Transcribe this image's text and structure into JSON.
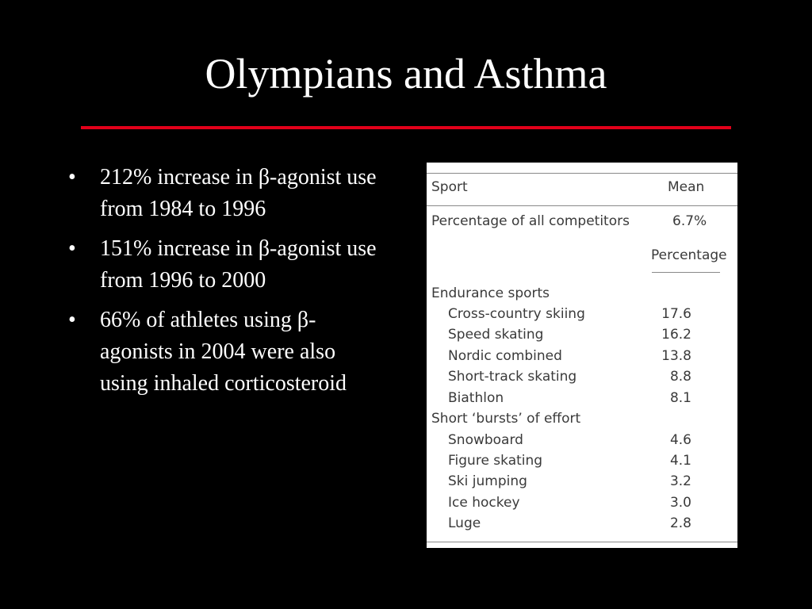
{
  "slide": {
    "title": "Olympians and Asthma",
    "accent_color": "#e2001a",
    "bullets": [
      "212% increase in β-agonist use from 1984 to 1996",
      "151% increase in β-agonist use from 1996 to 2000",
      "66% of athletes using β-agonists in 2004 were also using inhaled corticosteroid"
    ],
    "bullet_marker": "•"
  },
  "table": {
    "header": {
      "sport": "Sport",
      "mean": "Mean"
    },
    "all_competitors": {
      "label": "Percentage of all competitors",
      "value": "6.7%"
    },
    "subheader": "Percentage",
    "groups": [
      {
        "name": "Endurance sports",
        "rows": [
          {
            "sport": "Cross-country skiing",
            "value": "17.6"
          },
          {
            "sport": "Speed skating",
            "value": "16.2"
          },
          {
            "sport": "Nordic combined",
            "value": "13.8"
          },
          {
            "sport": "Short-track skating",
            "value": "8.8"
          },
          {
            "sport": "Biathlon",
            "value": "8.1"
          }
        ]
      },
      {
        "name": "Short ‘bursts’ of effort",
        "rows": [
          {
            "sport": "Snowboard",
            "value": "4.6"
          },
          {
            "sport": "Figure skating",
            "value": "4.1"
          },
          {
            "sport": "Ski jumping",
            "value": "3.2"
          },
          {
            "sport": "Ice hockey",
            "value": "3.0"
          },
          {
            "sport": "Luge",
            "value": "2.8"
          }
        ]
      }
    ]
  }
}
